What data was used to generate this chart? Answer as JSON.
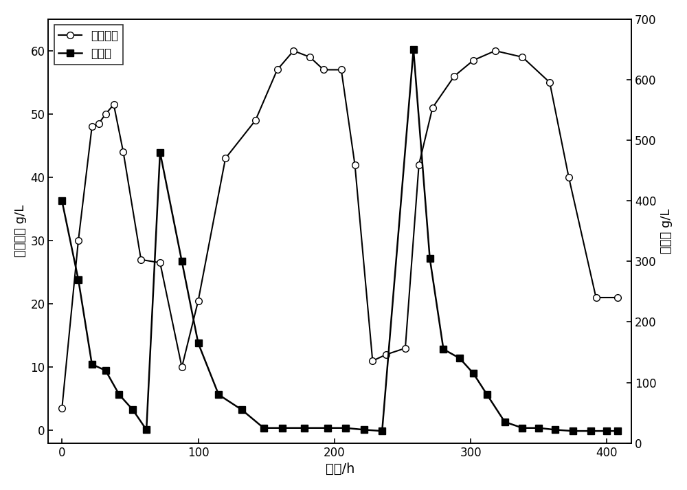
{
  "ethanol_x": [
    0,
    12,
    22,
    27,
    32,
    38,
    45,
    58,
    72,
    88,
    100,
    120,
    142,
    158,
    170,
    182,
    192,
    205,
    215,
    228,
    238,
    252,
    262,
    272,
    288,
    302,
    318,
    338,
    358,
    372,
    392,
    408
  ],
  "ethanol_y": [
    3.5,
    30,
    48,
    48.5,
    50,
    51.5,
    44,
    27,
    26.5,
    10,
    20.5,
    43,
    49,
    57,
    60,
    59,
    57,
    57,
    42,
    11,
    12,
    13,
    42,
    51,
    56,
    58.5,
    60,
    59,
    55,
    40,
    21,
    21
  ],
  "sugar_x": [
    0,
    12,
    22,
    32,
    42,
    52,
    62,
    72,
    88,
    100,
    115,
    132,
    148,
    162,
    178,
    195,
    208,
    222,
    235,
    258,
    270,
    280,
    292,
    302,
    312,
    325,
    338,
    350,
    362,
    375,
    388,
    400,
    408
  ],
  "sugar_y": [
    400,
    270,
    130,
    120,
    80,
    55,
    22,
    480,
    300,
    165,
    80,
    55,
    25,
    25,
    25,
    25,
    25,
    22,
    20,
    650,
    305,
    155,
    140,
    115,
    80,
    35,
    25,
    25,
    22,
    20,
    20,
    20,
    20
  ],
  "xlabel": "时间/h",
  "ylabel_left": "乙醇浓度 g/L",
  "ylabel_right": "糖浓度 g/L",
  "legend_ethanol": "乙醇浓度",
  "legend_sugar": "糖浓度",
  "xlim": [
    -10,
    418
  ],
  "ylim_left": [
    -2,
    65
  ],
  "ylim_right": [
    0,
    700
  ],
  "xticks": [
    0,
    100,
    200,
    300,
    400
  ],
  "yticks_left": [
    0,
    10,
    20,
    30,
    40,
    50,
    60
  ],
  "yticks_right": [
    0,
    100,
    200,
    300,
    400,
    500,
    600,
    700
  ],
  "line_color": "#000000",
  "bg_color": "#ffffff"
}
